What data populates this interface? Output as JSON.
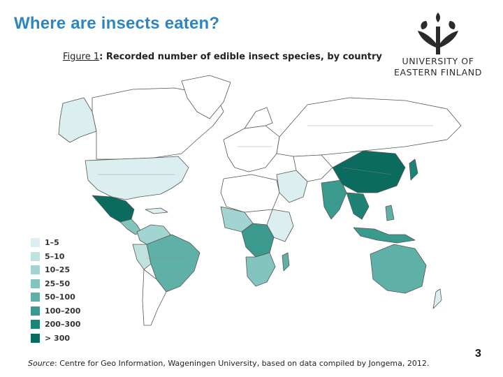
{
  "slide": {
    "title": "Where are insects eaten?",
    "page_number": "3"
  },
  "figure": {
    "label": "Figure 1",
    "title": ": Recorded number of edible insect species, by country"
  },
  "logo": {
    "line1": "UNIVERSITY OF",
    "line2": "EASTERN FINLAND",
    "color": "#2b2b2b"
  },
  "legend": {
    "items": [
      {
        "label": "1–5",
        "color": "#dbeef0"
      },
      {
        "label": "5–10",
        "color": "#bfe2e1"
      },
      {
        "label": "10–25",
        "color": "#a2d4d1"
      },
      {
        "label": "25–50",
        "color": "#84c4bf"
      },
      {
        "label": "50–100",
        "color": "#5fb0a6"
      },
      {
        "label": "100–200",
        "color": "#3a9a8e"
      },
      {
        "label": "200–300",
        "color": "#1e8274"
      },
      {
        "label": "> 300",
        "color": "#0b6b5f"
      }
    ]
  },
  "source": {
    "prefix": "Source",
    "text": ": Centre for Geo Information, Wageningen University, based on data compiled by Jongema, 2012."
  }
}
